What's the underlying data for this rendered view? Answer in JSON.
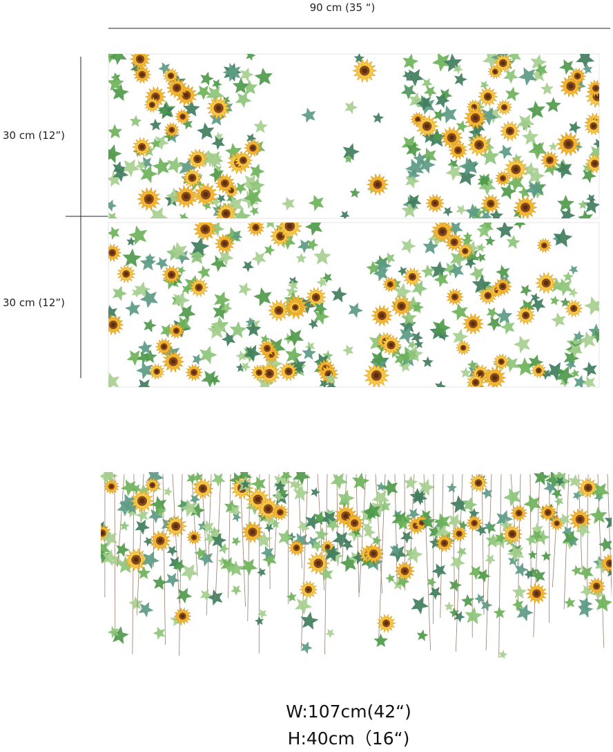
{
  "dimensions": {
    "width": "90 cm (35 “)",
    "heights": [
      "30 cm (12”)",
      "30 cm (12”)"
    ]
  },
  "caption": {
    "width": "W:107cm(42“)",
    "height": "H:40cm（16“)"
  }
}
